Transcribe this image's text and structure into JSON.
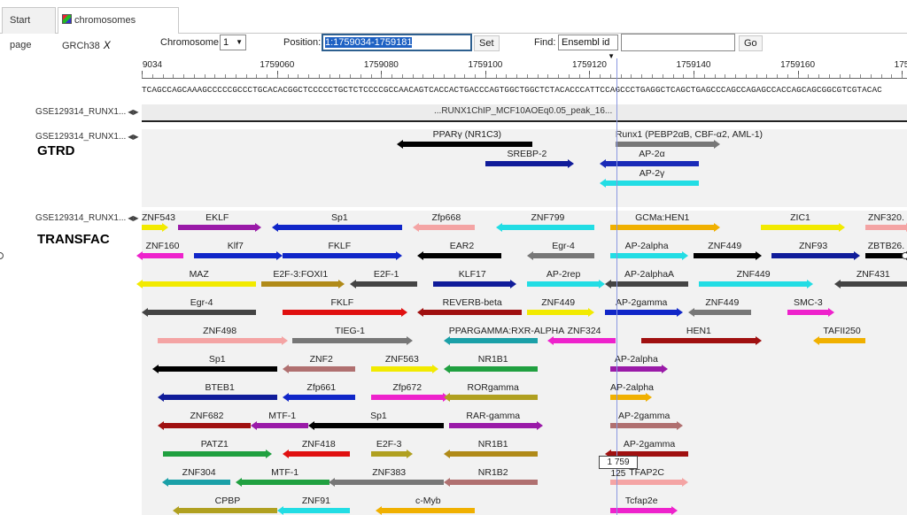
{
  "tabs": [
    {
      "label": "Start page"
    },
    {
      "label": "chromosomes GRCh38",
      "close": "X"
    }
  ],
  "toolbar": {
    "chromosome_label": "Chromosome:",
    "chromosome_value": "1",
    "position_label": "Position:",
    "position_value": "1:1759034-1759181",
    "set_label": "Set",
    "find_label": "Find:",
    "find_type": "Ensembl id",
    "find_value": "",
    "go_label": "Go"
  },
  "ruler": {
    "start": 1759034,
    "end": 1759181,
    "ticks": [
      "9034",
      "1759060",
      "1759080",
      "1759100",
      "1759120",
      "1759140",
      "1759160",
      "175"
    ],
    "tick_positions": [
      1759034,
      1759060,
      1759080,
      1759100,
      1759120,
      1759140,
      1759160,
      1759180
    ],
    "sequence": "TCAGCCAGCAAAGCCCCCGCCCTGCACACGGCTCCCCCTGCTCTCCCCGCCAACAGTCACCACTGACCCAGTGGCTGGCTCTACACCCATTCCAGCCCTGAGGCTCAGCTGAGCCCAGCCAGAGCCACCAGCAGCGGCGTCGTACAC"
  },
  "tracks": {
    "peak": {
      "name": "GSE129314_RUNX1...",
      "feature": "...RUNX1ChIP_MCF10AOEq0.05_peak_16..."
    },
    "gtrd": {
      "name": "GSE129314_RUNX1...",
      "title": "GTRD"
    },
    "transfac": {
      "name": "GSE129314_RUNX1...",
      "title": "TRANSFAC"
    }
  },
  "cursor": {
    "position": "1 759 125"
  },
  "gtrd_features": [
    {
      "name": "PPARγ (NR1C3)",
      "start": 1759084,
      "end": 1759109,
      "color": "#000000",
      "row": 0,
      "dir": "left"
    },
    {
      "name": "Runx1 (PEBP2αB, CBF-α2, AML-1)",
      "start": 1759125,
      "end": 1759144,
      "color": "#777777",
      "row": 0,
      "dir": "right"
    },
    {
      "name": "SREBP-2",
      "start": 1759100,
      "end": 1759116,
      "color": "#101c9a",
      "row": 1,
      "dir": "right"
    },
    {
      "name": "AP-2α",
      "start": 1759123,
      "end": 1759141,
      "color": "#1a2bb8",
      "row": 1,
      "dir": "left"
    },
    {
      "name": "AP-2γ",
      "start": 1759123,
      "end": 1759141,
      "color": "#22dde4",
      "row": 2,
      "dir": "left"
    }
  ],
  "transfac_features": [
    {
      "name": "ZNF543",
      "start": 1759034,
      "end": 1759038,
      "color": "#f2ea00",
      "row": 0,
      "dir": "right"
    },
    {
      "name": "EKLF",
      "start": 1759041,
      "end": 1759056,
      "color": "#9a1aa8",
      "row": 0,
      "dir": "right"
    },
    {
      "name": "Sp1",
      "start": 1759060,
      "end": 1759084,
      "color": "#1026c8",
      "row": 0,
      "dir": "left"
    },
    {
      "name": "Zfp668",
      "start": 1759087,
      "end": 1759098,
      "color": "#f4a4a4",
      "row": 0,
      "dir": "left"
    },
    {
      "name": "ZNF799",
      "start": 1759103,
      "end": 1759121,
      "color": "#22dde4",
      "row": 0,
      "dir": "left"
    },
    {
      "name": "GCMa:HEN1",
      "start": 1759124,
      "end": 1759144,
      "color": "#f0b000",
      "row": 0,
      "dir": "right"
    },
    {
      "name": "ZIC1",
      "start": 1759153,
      "end": 1759168,
      "color": "#f2ea00",
      "row": 0,
      "dir": "right"
    },
    {
      "name": "ZNF320.",
      "start": 1759173,
      "end": 1759181,
      "color": "#f4a4a4",
      "row": 0,
      "dir": "right"
    },
    {
      "name": "ZNF160",
      "start": 1759034,
      "end": 1759042,
      "color": "#ee22cc",
      "row": 1,
      "dir": "left"
    },
    {
      "name": "Klf7",
      "start": 1759044,
      "end": 1759060,
      "color": "#1026c8",
      "row": 1,
      "dir": "right"
    },
    {
      "name": "FKLF",
      "start": 1759061,
      "end": 1759083,
      "color": "#1026c8",
      "row": 1,
      "dir": "right"
    },
    {
      "name": "EAR2",
      "start": 1759088,
      "end": 1759103,
      "color": "#000000",
      "row": 1,
      "dir": "left"
    },
    {
      "name": "Egr-4",
      "start": 1759109,
      "end": 1759121,
      "color": "#777777",
      "row": 1,
      "dir": "left"
    },
    {
      "name": "AP-2alpha",
      "start": 1759124,
      "end": 1759138,
      "color": "#22dde4",
      "row": 1,
      "dir": "right"
    },
    {
      "name": "ZNF449",
      "start": 1759140,
      "end": 1759152,
      "color": "#000000",
      "row": 1,
      "dir": "right"
    },
    {
      "name": "ZNF93",
      "start": 1759155,
      "end": 1759171,
      "color": "#101c9a",
      "row": 1,
      "dir": "right"
    },
    {
      "name": "ZBTB26.",
      "start": 1759173,
      "end": 1759181,
      "color": "#000000",
      "row": 1,
      "dir": "right"
    },
    {
      "name": "MAZ",
      "start": 1759034,
      "end": 1759056,
      "color": "#f2ea00",
      "row": 2,
      "dir": "left"
    },
    {
      "name": "E2F-3:FOXI1",
      "start": 1759057,
      "end": 1759072,
      "color": "#b08a18",
      "row": 2,
      "dir": "right"
    },
    {
      "name": "E2F-1",
      "start": 1759075,
      "end": 1759087,
      "color": "#444444",
      "row": 2,
      "dir": "left"
    },
    {
      "name": "KLF17",
      "start": 1759090,
      "end": 1759105,
      "color": "#101c9a",
      "row": 2,
      "dir": "right"
    },
    {
      "name": "AP-2rep",
      "start": 1759108,
      "end": 1759122,
      "color": "#22dde4",
      "row": 2,
      "dir": "right"
    },
    {
      "name": "AP-2alphaA",
      "start": 1759124,
      "end": 1759139,
      "color": "#444444",
      "row": 2,
      "dir": "left"
    },
    {
      "name": "ZNF449",
      "start": 1759141,
      "end": 1759162,
      "color": "#22dde4",
      "row": 2,
      "dir": "right"
    },
    {
      "name": "ZNF431",
      "start": 1759168,
      "end": 1759181,
      "color": "#444444",
      "row": 2,
      "dir": "left"
    },
    {
      "name": "Egr-4",
      "start": 1759035,
      "end": 1759056,
      "color": "#444444",
      "row": 3,
      "dir": "left"
    },
    {
      "name": "FKLF",
      "start": 1759061,
      "end": 1759084,
      "color": "#e01010",
      "row": 3,
      "dir": "right"
    },
    {
      "name": "REVERB-beta",
      "start": 1759088,
      "end": 1759107,
      "color": "#a01010",
      "row": 3,
      "dir": "left"
    },
    {
      "name": "ZNF449",
      "start": 1759108,
      "end": 1759120,
      "color": "#f2ea00",
      "row": 3,
      "dir": "right"
    },
    {
      "name": "AP-2gamma",
      "start": 1759123,
      "end": 1759137,
      "color": "#1026c8",
      "row": 3,
      "dir": "right"
    },
    {
      "name": "ZNF449",
      "start": 1759140,
      "end": 1759151,
      "color": "#777777",
      "row": 3,
      "dir": "left"
    },
    {
      "name": "SMC-3",
      "start": 1759158,
      "end": 1759166,
      "color": "#ee22cc",
      "row": 3,
      "dir": "right"
    },
    {
      "name": "ZNF498",
      "start": 1759037,
      "end": 1759061,
      "color": "#f4a4a4",
      "row": 4,
      "dir": "right"
    },
    {
      "name": "TIEG-1",
      "start": 1759063,
      "end": 1759085,
      "color": "#777777",
      "row": 4,
      "dir": "right"
    },
    {
      "name": "PPARGAMMA:RXR-ALPHA",
      "start": 1759093,
      "end": 1759110,
      "color": "#1ba0a8",
      "row": 4,
      "dir": "left"
    },
    {
      "name": "ZNF324",
      "start": 1759113,
      "end": 1759125,
      "color": "#ee22cc",
      "row": 4,
      "dir": "left"
    },
    {
      "name": "HEN1",
      "start": 1759130,
      "end": 1759152,
      "color": "#a01010",
      "row": 4,
      "dir": "right"
    },
    {
      "name": "TAFII250",
      "start": 1759164,
      "end": 1759173,
      "color": "#f0b000",
      "row": 4,
      "dir": "left"
    },
    {
      "name": "Sp1",
      "start": 1759037,
      "end": 1759060,
      "color": "#000000",
      "row": 5,
      "dir": "left"
    },
    {
      "name": "ZNF2",
      "start": 1759062,
      "end": 1759075,
      "color": "#b07070",
      "row": 5,
      "dir": "left"
    },
    {
      "name": "ZNF563",
      "start": 1759078,
      "end": 1759090,
      "color": "#f2ea00",
      "row": 5,
      "dir": "right"
    },
    {
      "name": "NR1B1",
      "start": 1759093,
      "end": 1759110,
      "color": "#20a040",
      "row": 5,
      "dir": "left"
    },
    {
      "name": "AP-2alpha",
      "start": 1759124,
      "end": 1759134,
      "color": "#9a1aa8",
      "row": 5,
      "dir": "right"
    },
    {
      "name": "BTEB1",
      "start": 1759038,
      "end": 1759060,
      "color": "#101c9a",
      "row": 6,
      "dir": "left"
    },
    {
      "name": "Zfp661",
      "start": 1759062,
      "end": 1759075,
      "color": "#1026c8",
      "row": 6,
      "dir": "left"
    },
    {
      "name": "Zfp672",
      "start": 1759078,
      "end": 1759092,
      "color": "#ee22cc",
      "row": 6,
      "dir": "right"
    },
    {
      "name": "RORgamma",
      "start": 1759093,
      "end": 1759110,
      "color": "#b0a020",
      "row": 6,
      "dir": "left"
    },
    {
      "name": "AP-2alpha",
      "start": 1759124,
      "end": 1759131,
      "color": "#f0b000",
      "row": 6,
      "dir": "right"
    },
    {
      "name": "ZNF682",
      "start": 1759038,
      "end": 1759055,
      "color": "#a01010",
      "row": 7,
      "dir": "left"
    },
    {
      "name": "MTF-1",
      "start": 1759056,
      "end": 1759066,
      "color": "#9a1aa8",
      "row": 7,
      "dir": "left"
    },
    {
      "name": "Sp1",
      "start": 1759067,
      "end": 1759092,
      "color": "#000000",
      "row": 7,
      "dir": "left"
    },
    {
      "name": "RAR-gamma",
      "start": 1759093,
      "end": 1759110,
      "color": "#9a1aa8",
      "row": 7,
      "dir": "right"
    },
    {
      "name": "AP-2gamma",
      "start": 1759124,
      "end": 1759137,
      "color": "#b07070",
      "row": 7,
      "dir": "right"
    },
    {
      "name": "PATZ1",
      "start": 1759038,
      "end": 1759058,
      "color": "#20a040",
      "row": 8,
      "dir": "right"
    },
    {
      "name": "ZNF418",
      "start": 1759062,
      "end": 1759074,
      "color": "#e01010",
      "row": 8,
      "dir": "left"
    },
    {
      "name": "E2F-3",
      "start": 1759078,
      "end": 1759085,
      "color": "#b0a020",
      "row": 8,
      "dir": "right"
    },
    {
      "name": "NR1B1",
      "start": 1759093,
      "end": 1759110,
      "color": "#b08a18",
      "row": 8,
      "dir": "left"
    },
    {
      "name": "AP-2gamma",
      "start": 1759124,
      "end": 1759139,
      "color": "#a01010",
      "row": 8,
      "dir": "left"
    },
    {
      "name": "ZNF304",
      "start": 1759039,
      "end": 1759051,
      "color": "#1ba0a8",
      "row": 9,
      "dir": "left"
    },
    {
      "name": "MTF-1",
      "start": 1759053,
      "end": 1759070,
      "color": "#20a040",
      "row": 9,
      "dir": "left"
    },
    {
      "name": "ZNF383",
      "start": 1759071,
      "end": 1759092,
      "color": "#777777",
      "row": 9,
      "dir": "left"
    },
    {
      "name": "NR1B2",
      "start": 1759093,
      "end": 1759110,
      "color": "#b07070",
      "row": 9,
      "dir": "left"
    },
    {
      "name": "TFAP2C",
      "start": 1759124,
      "end": 1759138,
      "color": "#f4a4a4",
      "row": 9,
      "dir": "right"
    },
    {
      "name": "CPBP",
      "start": 1759041,
      "end": 1759060,
      "color": "#b0a020",
      "row": 10,
      "dir": "left"
    },
    {
      "name": "ZNF91",
      "start": 1759061,
      "end": 1759074,
      "color": "#22dde4",
      "row": 10,
      "dir": "left"
    },
    {
      "name": "c-Myb",
      "start": 1759080,
      "end": 1759098,
      "color": "#f0b000",
      "row": 10,
      "dir": "left"
    },
    {
      "name": "Tcfap2e",
      "start": 1759124,
      "end": 1759136,
      "color": "#ee22cc",
      "row": 10,
      "dir": "right"
    }
  ]
}
